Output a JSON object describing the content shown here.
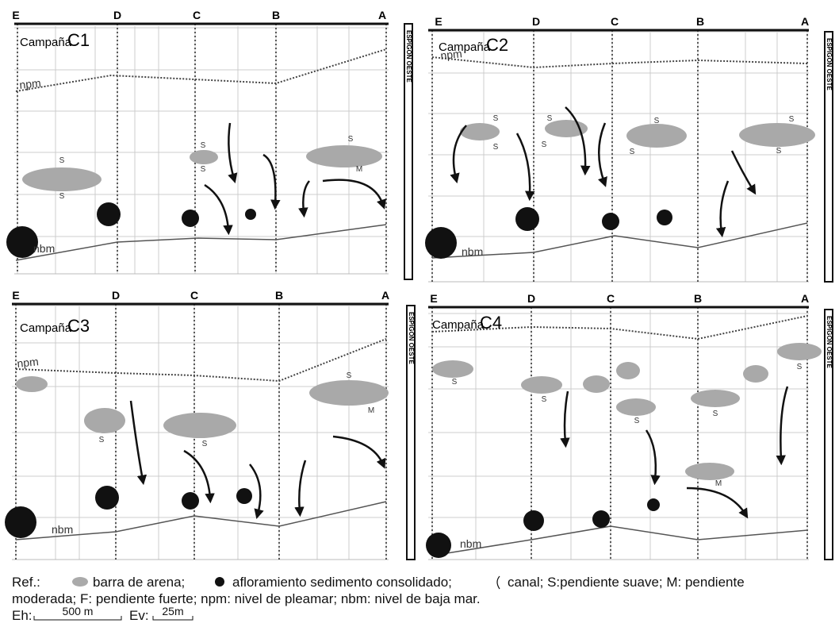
{
  "panels": [
    {
      "profiles": [
        "E",
        "D",
        "C",
        "B",
        "A"
      ],
      "title": "Campaña",
      "campaign": "C1",
      "npm": "npm",
      "nbm": "nbm",
      "side": "ESPIGON OESTE",
      "marks": [
        "S",
        "S",
        "S",
        "S",
        "S",
        "M"
      ]
    },
    {
      "profiles": [
        "E",
        "D",
        "C",
        "B",
        "A"
      ],
      "title": "Campaña",
      "campaign": "C2",
      "npm": "npm",
      "nbm": "nbm",
      "side": "ESPIGON OESTE",
      "marks": [
        "S",
        "S",
        "S",
        "S",
        "S",
        "S",
        "S",
        "S"
      ]
    },
    {
      "profiles": [
        "E",
        "D",
        "C",
        "B",
        "A"
      ],
      "title": "Campaña",
      "campaign": "C3",
      "npm": "npm",
      "nbm": "nbm",
      "side": "ESPIGON OESTE",
      "marks": [
        "S",
        "S",
        "S",
        "M"
      ]
    },
    {
      "profiles": [
        "E",
        "D",
        "C",
        "B",
        "A"
      ],
      "title": "Campaña",
      "campaign": "C4",
      "npm": "npm",
      "nbm": "nbm",
      "side": "ESPIGON OESTE",
      "marks": [
        "S",
        "S",
        "S",
        "S",
        "S",
        "M"
      ]
    }
  ],
  "legend": {
    "ref": "Ref.:",
    "sand": "barra de arena;",
    "outcrop": "afloramiento sedimento consolidado;",
    "canal_1": "canal; S:pendiente suave; M: pendiente",
    "canal_2": "moderada; F: pendiente fuerte; npm: nivel de pleamar; nbm: nivel de baja mar.",
    "eh": "Eh:",
    "eh_scale": "500 m",
    "ev": "Ev:",
    "ev_scale": "25m"
  }
}
